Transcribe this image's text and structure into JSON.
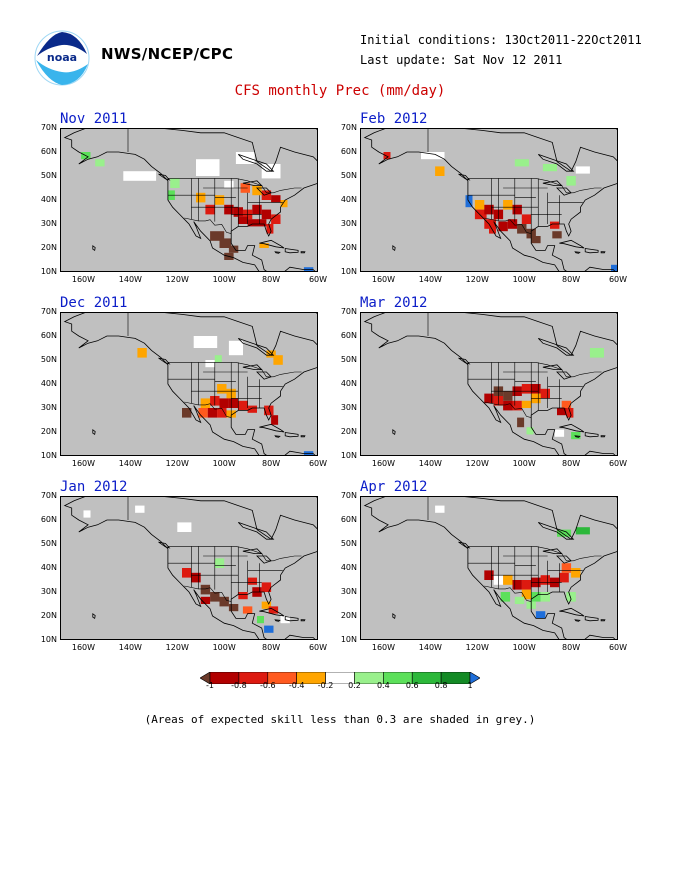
{
  "header": {
    "agency": "NWS/NCEP/CPC",
    "logo_text": "noaa",
    "initial_conditions": "Initial conditions: 13Oct2011-22Oct2011",
    "last_update": "Last update: Sat Nov 12 2011",
    "title": "CFS monthly Prec (mm/day)"
  },
  "axes": {
    "lat_labels": [
      "70N",
      "60N",
      "50N",
      "40N",
      "30N",
      "20N",
      "10N"
    ],
    "lon_labels": [
      "160W",
      "140W",
      "120W",
      "100W",
      "80W",
      "60W"
    ]
  },
  "panels": [
    {
      "id": "nov",
      "title": "Nov 2011"
    },
    {
      "id": "feb",
      "title": "Feb 2012"
    },
    {
      "id": "dec",
      "title": "Dec 2011"
    },
    {
      "id": "mar",
      "title": "Mar 2012"
    },
    {
      "id": "jan",
      "title": "Jan 2012"
    },
    {
      "id": "apr",
      "title": "Apr 2012"
    }
  ],
  "colorbar": {
    "labels": [
      "-1",
      "-0.8",
      "-0.6",
      "-0.4",
      "-0.2",
      "0.2",
      "0.4",
      "0.6",
      "0.8",
      "1"
    ],
    "colors": [
      "#6b3a2a",
      "#b20000",
      "#dd1a10",
      "#ff5a1f",
      "#ffa500",
      "#ffffff",
      "#99f08c",
      "#5ce05a",
      "#2cb83a",
      "#138a25",
      "#1f6ed9"
    ]
  },
  "colors": {
    "grey_mask": "#c0c0c0",
    "title_red": "#cc0000",
    "panel_title_blue": "#0b1dc8"
  },
  "footnote": "(Areas of expected skill less than 0.3 are shaded in grey.)"
}
